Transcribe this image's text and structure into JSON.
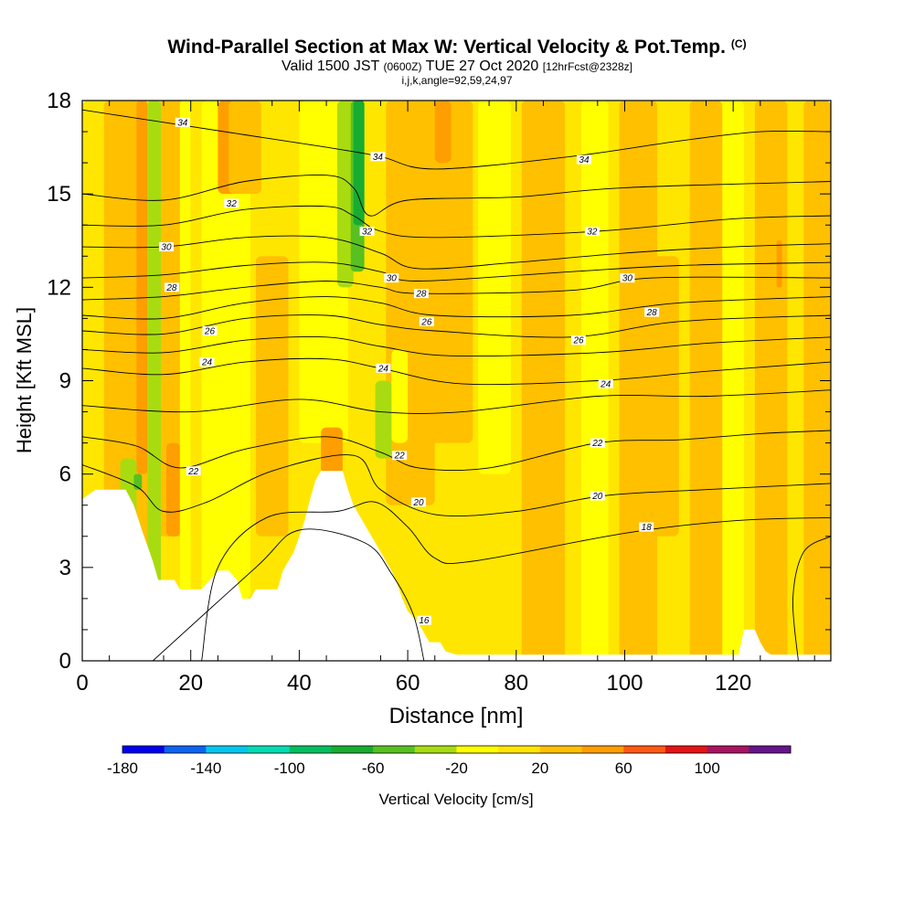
{
  "chart_data": {
    "type": "heatmap",
    "title": "Wind-Parallel Section at Max W: Vertical Velocity & Pot.Temp.",
    "title_mark": "(C)",
    "subtitle_parts": [
      "Valid 1500 JST",
      "(0600Z)",
      "TUE 27 Oct 2020",
      "[12hrFcst@2328z]"
    ],
    "subtitle2": "i,j,k,angle=92,59,24,97",
    "xlabel": "Distance [nm]",
    "ylabel": "Height [Kft MSL]",
    "xlim": [
      0,
      138
    ],
    "ylim": [
      0,
      18
    ],
    "x_ticks": [
      "0",
      "20",
      "40",
      "60",
      "80",
      "100",
      "120"
    ],
    "y_ticks": [
      "0",
      "3",
      "6",
      "9",
      "12",
      "15",
      "18"
    ],
    "colorbar": {
      "label": "Vertical Velocity [cm/s]",
      "tick_labels": [
        "-180",
        "-140",
        "-100",
        "-60",
        "-20",
        "20",
        "60",
        "100"
      ],
      "levels": [
        -180,
        -160,
        -140,
        -120,
        -100,
        -80,
        -60,
        -40,
        -20,
        0,
        20,
        40,
        60,
        80,
        100,
        120
      ],
      "colors": [
        "#0000f0",
        "#0a64f0",
        "#00c8f0",
        "#00dcb4",
        "#00c060",
        "#18ac30",
        "#58c020",
        "#a8dc10",
        "#ffff00",
        "#ffe600",
        "#ffc000",
        "#ff9e00",
        "#ff5a14",
        "#e61414",
        "#a81460",
        "#64148c"
      ]
    },
    "terrain": [
      [
        0,
        5.2
      ],
      [
        2.5,
        5.5
      ],
      [
        8,
        5.5
      ],
      [
        9.5,
        5.0
      ],
      [
        11,
        4.2
      ],
      [
        13,
        3.2
      ],
      [
        14,
        2.6
      ],
      [
        17,
        2.6
      ],
      [
        18,
        2.3
      ],
      [
        22,
        2.3
      ],
      [
        23.5,
        2.6
      ],
      [
        25,
        2.9
      ],
      [
        27,
        2.9
      ],
      [
        28.5,
        2.6
      ],
      [
        29.5,
        2.0
      ],
      [
        31,
        2.0
      ],
      [
        32,
        2.3
      ],
      [
        36,
        2.3
      ],
      [
        37,
        2.9
      ],
      [
        39,
        3.5
      ],
      [
        41,
        4.5
      ],
      [
        42,
        5.2
      ],
      [
        43,
        5.8
      ],
      [
        44,
        6.1
      ],
      [
        48,
        6.1
      ],
      [
        49,
        5.5
      ],
      [
        50,
        5.0
      ],
      [
        52,
        4.4
      ],
      [
        54,
        3.8
      ],
      [
        55,
        3.5
      ],
      [
        56,
        3.2
      ],
      [
        57,
        2.9
      ],
      [
        58,
        2.5
      ],
      [
        59,
        2.0
      ],
      [
        60,
        1.6
      ],
      [
        61,
        1.4
      ],
      [
        62,
        1.2
      ],
      [
        63,
        0.9
      ],
      [
        64,
        0.6
      ],
      [
        66,
        0.6
      ],
      [
        67,
        0.3
      ],
      [
        69,
        0.2
      ],
      [
        121,
        0.2
      ],
      [
        122,
        1.0
      ],
      [
        124,
        1.0
      ],
      [
        125,
        0.6
      ],
      [
        126,
        0.3
      ],
      [
        127,
        0.2
      ],
      [
        138,
        0.2
      ]
    ],
    "theta_contours": [
      {
        "label": "16",
        "pts": [
          [
            13,
            0
          ],
          [
            32,
            3
          ],
          [
            40,
            4.2
          ],
          [
            52,
            3.8
          ],
          [
            57,
            2.8
          ],
          [
            61,
            1.5
          ],
          [
            63,
            0
          ]
        ]
      },
      {
        "label": "16",
        "pts": [
          [
            132,
            0
          ],
          [
            131,
            2
          ],
          [
            133,
            3.5
          ],
          [
            138,
            4
          ]
        ]
      },
      {
        "label": "18",
        "pts": [
          [
            22,
            0
          ],
          [
            25,
            3
          ],
          [
            34,
            4.6
          ],
          [
            47,
            4.8
          ],
          [
            54,
            5.1
          ],
          [
            60,
            4.3
          ],
          [
            65,
            3.3
          ],
          [
            72,
            3.2
          ],
          [
            100,
            4.1
          ],
          [
            120,
            4.5
          ],
          [
            138,
            4.6
          ]
        ]
      },
      {
        "label": "20",
        "pts": [
          [
            0,
            6.3
          ],
          [
            10,
            5.6
          ],
          [
            15,
            4.8
          ],
          [
            23,
            5.1
          ],
          [
            35,
            6.1
          ],
          [
            50,
            6.6
          ],
          [
            55,
            5.5
          ],
          [
            65,
            4.7
          ],
          [
            80,
            4.8
          ],
          [
            96,
            5.3
          ],
          [
            115,
            5.5
          ],
          [
            138,
            5.7
          ]
        ]
      },
      {
        "label": "22",
        "pts": [
          [
            0,
            7.2
          ],
          [
            10,
            6.9
          ],
          [
            18,
            6.2
          ],
          [
            30,
            6.8
          ],
          [
            45,
            7.2
          ],
          [
            55,
            6.7
          ],
          [
            62,
            6.2
          ],
          [
            75,
            6.2
          ],
          [
            95,
            7.0
          ],
          [
            110,
            7.1
          ],
          [
            125,
            7.3
          ],
          [
            138,
            7.4
          ]
        ]
      },
      {
        "label": "",
        "pts": [
          [
            0,
            8.2
          ],
          [
            20,
            8.0
          ],
          [
            40,
            8.4
          ],
          [
            55,
            8.0
          ],
          [
            70,
            8.0
          ],
          [
            95,
            8.5
          ],
          [
            115,
            8.5
          ],
          [
            138,
            8.7
          ]
        ]
      },
      {
        "label": "24",
        "pts": [
          [
            0,
            9.4
          ],
          [
            15,
            9.2
          ],
          [
            30,
            9.6
          ],
          [
            45,
            9.7
          ],
          [
            55,
            9.4
          ],
          [
            70,
            8.9
          ],
          [
            95,
            9.0
          ],
          [
            115,
            9.3
          ],
          [
            138,
            9.6
          ]
        ]
      },
      {
        "label": "",
        "pts": [
          [
            0,
            10.0
          ],
          [
            15,
            9.9
          ],
          [
            30,
            10.3
          ],
          [
            45,
            10.4
          ],
          [
            55,
            10.1
          ],
          [
            68,
            9.8
          ],
          [
            95,
            9.9
          ],
          [
            115,
            10.2
          ],
          [
            138,
            10.4
          ]
        ]
      },
      {
        "label": "26",
        "pts": [
          [
            0,
            10.6
          ],
          [
            15,
            10.5
          ],
          [
            30,
            11.0
          ],
          [
            45,
            11.1
          ],
          [
            55,
            10.8
          ],
          [
            65,
            10.6
          ],
          [
            90,
            10.4
          ],
          [
            110,
            10.9
          ],
          [
            138,
            11.1
          ]
        ]
      },
      {
        "label": "",
        "pts": [
          [
            0,
            11.1
          ],
          [
            15,
            11.0
          ],
          [
            30,
            11.5
          ],
          [
            45,
            11.7
          ],
          [
            55,
            11.5
          ],
          [
            65,
            11.1
          ],
          [
            90,
            11.1
          ],
          [
            110,
            11.5
          ],
          [
            138,
            11.7
          ]
        ]
      },
      {
        "label": "28",
        "pts": [
          [
            0,
            11.6
          ],
          [
            15,
            11.7
          ],
          [
            30,
            12.0
          ],
          [
            45,
            12.2
          ],
          [
            55,
            12.0
          ],
          [
            62,
            11.8
          ],
          [
            90,
            11.9
          ],
          [
            105,
            12.3
          ],
          [
            138,
            12.3
          ]
        ]
      },
      {
        "label": "",
        "pts": [
          [
            0,
            12.3
          ],
          [
            15,
            12.4
          ],
          [
            30,
            12.7
          ],
          [
            45,
            12.8
          ],
          [
            55,
            12.5
          ],
          [
            62,
            12.2
          ],
          [
            90,
            12.5
          ],
          [
            110,
            12.7
          ],
          [
            138,
            12.8
          ]
        ]
      },
      {
        "label": "30",
        "pts": [
          [
            0,
            13.3
          ],
          [
            15,
            13.3
          ],
          [
            30,
            13.6
          ],
          [
            45,
            13.6
          ],
          [
            55,
            13.1
          ],
          [
            62,
            12.6
          ],
          [
            80,
            12.8
          ],
          [
            100,
            13.1
          ],
          [
            120,
            13.3
          ],
          [
            138,
            13.4
          ]
        ]
      },
      {
        "label": "",
        "pts": [
          [
            0,
            14.0
          ],
          [
            15,
            14.0
          ],
          [
            30,
            14.5
          ],
          [
            45,
            14.6
          ],
          [
            50,
            14.3
          ],
          [
            55,
            13.8
          ],
          [
            65,
            13.6
          ],
          [
            95,
            13.8
          ],
          [
            120,
            14.2
          ],
          [
            138,
            14.3
          ]
        ]
      },
      {
        "label": "32",
        "pts": [
          [
            0,
            15.0
          ],
          [
            15,
            14.8
          ],
          [
            30,
            15.4
          ],
          [
            45,
            15.6
          ],
          [
            50,
            15.2
          ],
          [
            53,
            14.3
          ],
          [
            60,
            14.8
          ],
          [
            80,
            14.9
          ],
          [
            100,
            15.2
          ],
          [
            138,
            15.4
          ]
        ]
      },
      {
        "label": "34",
        "pts": [
          [
            0,
            17.7
          ],
          [
            15,
            17.3
          ],
          [
            30,
            16.9
          ],
          [
            45,
            16.5
          ],
          [
            55,
            16.2
          ],
          [
            65,
            15.8
          ],
          [
            90,
            16.2
          ],
          [
            110,
            16.7
          ],
          [
            125,
            17.0
          ],
          [
            138,
            17.0
          ]
        ]
      }
    ],
    "contour_labels": [
      {
        "text": "34",
        "x": 18.5,
        "y": 17.3
      },
      {
        "text": "34",
        "x": 54.5,
        "y": 16.2
      },
      {
        "text": "34",
        "x": 92.5,
        "y": 16.1
      },
      {
        "text": "32",
        "x": 27.5,
        "y": 14.7
      },
      {
        "text": "32",
        "x": 52.5,
        "y": 13.8
      },
      {
        "text": "32",
        "x": 94,
        "y": 13.8
      },
      {
        "text": "30",
        "x": 15.5,
        "y": 13.3
      },
      {
        "text": "30",
        "x": 57,
        "y": 12.3
      },
      {
        "text": "30",
        "x": 100.5,
        "y": 12.3
      },
      {
        "text": "28",
        "x": 16.5,
        "y": 12.0
      },
      {
        "text": "28",
        "x": 62.5,
        "y": 11.8
      },
      {
        "text": "28",
        "x": 105,
        "y": 11.2
      },
      {
        "text": "26",
        "x": 23.5,
        "y": 10.6
      },
      {
        "text": "26",
        "x": 63.5,
        "y": 10.9
      },
      {
        "text": "26",
        "x": 91.5,
        "y": 10.3
      },
      {
        "text": "24",
        "x": 23,
        "y": 9.6
      },
      {
        "text": "24",
        "x": 55.5,
        "y": 9.4
      },
      {
        "text": "24",
        "x": 96.5,
        "y": 8.9
      },
      {
        "text": "22",
        "x": 20.5,
        "y": 6.1
      },
      {
        "text": "22",
        "x": 58.5,
        "y": 6.6
      },
      {
        "text": "22",
        "x": 95,
        "y": 7.0
      },
      {
        "text": "20",
        "x": 62,
        "y": 5.1
      },
      {
        "text": "20",
        "x": 95,
        "y": 5.3
      },
      {
        "text": "18",
        "x": 104,
        "y": 4.3
      },
      {
        "text": "16",
        "x": 63,
        "y": 1.3
      }
    ],
    "velocity_features": [
      {
        "x": 0,
        "w": 138,
        "y0": 0,
        "y1": 18,
        "v": 10
      },
      {
        "x": 22,
        "w": 9,
        "y0": 2,
        "y1": 18,
        "v": -10
      },
      {
        "x": 40,
        "w": 9,
        "y0": 7,
        "y1": 18,
        "v": -10
      },
      {
        "x": 73,
        "w": 6,
        "y0": 6,
        "y1": 18,
        "v": -10
      },
      {
        "x": 92,
        "w": 5,
        "y0": 0,
        "y1": 18,
        "v": -10
      },
      {
        "x": 116,
        "w": 6,
        "y0": 0,
        "y1": 18,
        "v": -10
      },
      {
        "x": 4,
        "w": 8,
        "y0": 0,
        "y1": 18,
        "v": 25
      },
      {
        "x": 14,
        "w": 6,
        "y0": 4,
        "y1": 18,
        "v": 30
      },
      {
        "x": 32,
        "w": 6,
        "y0": 4,
        "y1": 13,
        "v": 30
      },
      {
        "x": 56,
        "w": 9,
        "y0": 5,
        "y1": 18,
        "v": 30
      },
      {
        "x": 64,
        "w": 8,
        "y0": 7,
        "y1": 18,
        "v": 25
      },
      {
        "x": 81,
        "w": 8,
        "y0": 0,
        "y1": 18,
        "v": 25
      },
      {
        "x": 99,
        "w": 7,
        "y0": 0,
        "y1": 18,
        "v": 25
      },
      {
        "x": 104,
        "w": 6,
        "y0": 4,
        "y1": 13,
        "v": 25
      },
      {
        "x": 112,
        "w": 6,
        "y0": 0,
        "y1": 18,
        "v": 25
      },
      {
        "x": 124,
        "w": 6,
        "y0": 0,
        "y1": 18,
        "v": 25
      },
      {
        "x": 133,
        "w": 5,
        "y0": 0,
        "y1": 18,
        "v": 25
      },
      {
        "x": 25,
        "w": 4,
        "y0": 15,
        "y1": 18,
        "v": 50
      },
      {
        "x": 27,
        "w": 6,
        "y0": 15,
        "y1": 18,
        "v": 30
      },
      {
        "x": 10,
        "w": 2,
        "y0": 6,
        "y1": 18,
        "v": 50
      },
      {
        "x": 15.5,
        "w": 2.5,
        "y0": 4,
        "y1": 7,
        "v": 55
      },
      {
        "x": 33,
        "w": 4,
        "y0": 9.5,
        "y1": 12,
        "v": 35
      },
      {
        "x": 44,
        "w": 4,
        "y0": 6,
        "y1": 7.5,
        "v": 55
      },
      {
        "x": 65,
        "w": 3,
        "y0": 16,
        "y1": 18,
        "v": 55
      },
      {
        "x": 62,
        "w": 3,
        "y0": 9,
        "y1": 12,
        "v": 30
      },
      {
        "x": 128,
        "w": 1,
        "y0": 12,
        "y1": 13.5,
        "v": 55
      },
      {
        "x": 47,
        "w": 3,
        "y0": 12,
        "y1": 18,
        "v": -30
      },
      {
        "x": 49.5,
        "w": 2.5,
        "y0": 12.5,
        "y1": 18,
        "v": -55
      },
      {
        "x": 50,
        "w": 2,
        "y0": 14,
        "y1": 18,
        "v": -70
      },
      {
        "x": 7,
        "w": 3,
        "y0": 4.5,
        "y1": 6.5,
        "v": -30
      },
      {
        "x": 9.5,
        "w": 1.5,
        "y0": 5.5,
        "y1": 6,
        "v": -60
      },
      {
        "x": 12,
        "w": 2.5,
        "y0": 2,
        "y1": 18,
        "v": -30
      },
      {
        "x": 18,
        "w": 2,
        "y0": 2,
        "y1": 18,
        "v": -20
      },
      {
        "x": 57,
        "w": 3,
        "y0": 7,
        "y1": 10,
        "v": -20
      },
      {
        "x": 54,
        "w": 3,
        "y0": 6.5,
        "y1": 9,
        "v": -30
      }
    ]
  }
}
